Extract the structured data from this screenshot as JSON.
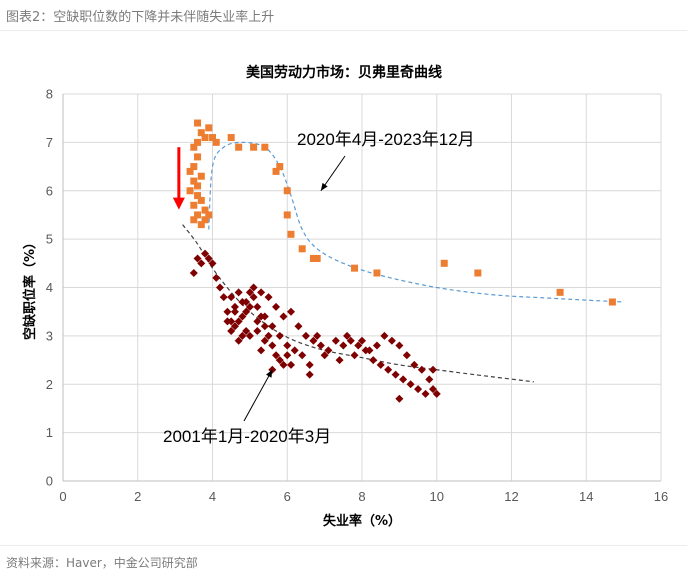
{
  "figure_caption": "图表2：空缺职位数的下降并未伴随失业率上升",
  "source_note": "资料来源：Haver，中金公司研究部",
  "colors": {
    "recent": "#ed7d31",
    "historical": "#7f0000",
    "recent_curve": "#5b9bd5",
    "historical_curve": "#404040",
    "arrow": "#ff0000",
    "grid": "#d9d9d9"
  },
  "chart_data": {
    "type": "scatter",
    "title": "美国劳动力市场：贝弗里奇曲线",
    "xlabel": "失业率（%）",
    "ylabel": "空缺职位率（%）",
    "xlim": [
      0,
      16
    ],
    "ylim": [
      0,
      8
    ],
    "xticks": [
      "0",
      "2",
      "4",
      "6",
      "8",
      "10",
      "12",
      "14",
      "16"
    ],
    "yticks": [
      "0",
      "1",
      "2",
      "3",
      "4",
      "5",
      "6",
      "7",
      "8"
    ],
    "grid": true,
    "annotations": [
      {
        "text": "2020年4月-2023年12月",
        "points_to": [
          6.9,
          6.0
        ]
      },
      {
        "text": "2001年1月-2020年3月",
        "points_to": [
          5.6,
          2.3
        ]
      }
    ],
    "red_arrow": {
      "x": 3.1,
      "y_from": 6.9,
      "y_to": 5.65
    },
    "series": [
      {
        "marker": "square",
        "points": [
          [
            3.5,
            5.4
          ],
          [
            3.6,
            5.5
          ],
          [
            3.7,
            5.3
          ],
          [
            3.8,
            5.4
          ],
          [
            3.5,
            5.7
          ],
          [
            3.6,
            5.9
          ],
          [
            3.7,
            5.8
          ],
          [
            3.8,
            5.6
          ],
          [
            3.9,
            5.5
          ],
          [
            3.6,
            6.1
          ],
          [
            3.7,
            6.3
          ],
          [
            3.5,
            6.2
          ],
          [
            3.4,
            6.0
          ],
          [
            3.5,
            6.5
          ],
          [
            3.6,
            6.7
          ],
          [
            3.4,
            6.4
          ],
          [
            3.5,
            6.9
          ],
          [
            3.6,
            7.0
          ],
          [
            3.7,
            7.2
          ],
          [
            3.6,
            7.4
          ],
          [
            3.8,
            7.1
          ],
          [
            3.9,
            7.3
          ],
          [
            4.0,
            7.1
          ],
          [
            4.1,
            7.0
          ],
          [
            4.5,
            7.1
          ],
          [
            4.7,
            6.9
          ],
          [
            5.1,
            6.9
          ],
          [
            5.4,
            6.9
          ],
          [
            5.7,
            6.4
          ],
          [
            5.8,
            6.5
          ],
          [
            6.0,
            6.0
          ],
          [
            6.0,
            5.5
          ],
          [
            6.1,
            5.1
          ],
          [
            6.4,
            4.8
          ],
          [
            6.7,
            4.6
          ],
          [
            6.8,
            4.6
          ],
          [
            7.8,
            4.4
          ],
          [
            8.4,
            4.3
          ],
          [
            10.2,
            4.5
          ],
          [
            11.1,
            4.3
          ],
          [
            13.3,
            3.9
          ],
          [
            14.7,
            3.7
          ]
        ]
      },
      {
        "marker": "diamond",
        "points": [
          [
            3.5,
            4.3
          ],
          [
            3.6,
            4.6
          ],
          [
            3.7,
            4.5
          ],
          [
            3.8,
            4.7
          ],
          [
            3.9,
            4.6
          ],
          [
            4.0,
            4.5
          ],
          [
            4.1,
            4.2
          ],
          [
            4.2,
            4.0
          ],
          [
            4.3,
            3.8
          ],
          [
            4.4,
            3.5
          ],
          [
            4.5,
            3.3
          ],
          [
            4.6,
            3.2
          ],
          [
            4.7,
            3.3
          ],
          [
            4.8,
            3.0
          ],
          [
            4.9,
            3.5
          ],
          [
            5.0,
            3.9
          ],
          [
            5.1,
            3.8
          ],
          [
            5.2,
            3.6
          ],
          [
            5.3,
            3.4
          ],
          [
            5.4,
            3.2
          ],
          [
            5.5,
            3.0
          ],
          [
            5.6,
            2.8
          ],
          [
            5.7,
            2.6
          ],
          [
            5.8,
            2.5
          ],
          [
            5.9,
            2.4
          ],
          [
            6.0,
            2.6
          ],
          [
            6.1,
            2.4
          ],
          [
            6.2,
            2.7
          ],
          [
            5.4,
            2.9
          ],
          [
            5.2,
            3.1
          ],
          [
            5.3,
            2.7
          ],
          [
            5.0,
            3.0
          ],
          [
            4.8,
            3.4
          ],
          [
            4.6,
            3.6
          ],
          [
            4.5,
            3.8
          ],
          [
            4.7,
            3.9
          ],
          [
            4.9,
            3.7
          ],
          [
            5.1,
            4.0
          ],
          [
            5.3,
            3.9
          ],
          [
            5.5,
            3.8
          ],
          [
            5.7,
            3.6
          ],
          [
            5.9,
            3.4
          ],
          [
            6.1,
            3.5
          ],
          [
            6.3,
            3.2
          ],
          [
            6.5,
            3.0
          ],
          [
            6.7,
            2.9
          ],
          [
            6.9,
            2.8
          ],
          [
            7.1,
            2.7
          ],
          [
            7.3,
            2.9
          ],
          [
            7.5,
            2.8
          ],
          [
            7.7,
            2.9
          ],
          [
            7.9,
            2.8
          ],
          [
            8.1,
            2.7
          ],
          [
            8.3,
            2.5
          ],
          [
            8.5,
            2.4
          ],
          [
            8.7,
            2.3
          ],
          [
            8.9,
            2.2
          ],
          [
            9.1,
            2.1
          ],
          [
            9.3,
            2.0
          ],
          [
            9.5,
            1.9
          ],
          [
            9.7,
            1.8
          ],
          [
            9.9,
            1.9
          ],
          [
            10.0,
            1.8
          ],
          [
            9.8,
            2.1
          ],
          [
            9.6,
            2.3
          ],
          [
            9.4,
            2.4
          ],
          [
            9.2,
            2.6
          ],
          [
            9.0,
            2.8
          ],
          [
            8.8,
            2.9
          ],
          [
            8.6,
            3.0
          ],
          [
            8.4,
            2.8
          ],
          [
            8.2,
            2.7
          ],
          [
            7.8,
            2.6
          ],
          [
            7.4,
            2.5
          ],
          [
            7.0,
            2.6
          ],
          [
            6.6,
            2.4
          ],
          [
            6.4,
            2.6
          ],
          [
            6.0,
            2.8
          ],
          [
            5.8,
            3.0
          ],
          [
            5.6,
            3.2
          ],
          [
            5.4,
            3.4
          ],
          [
            5.2,
            3.3
          ],
          [
            4.9,
            3.1
          ],
          [
            4.7,
            2.9
          ],
          [
            4.5,
            3.1
          ],
          [
            4.4,
            3.3
          ],
          [
            4.6,
            3.5
          ],
          [
            4.8,
            3.7
          ],
          [
            5.0,
            3.6
          ],
          [
            6.8,
            3.0
          ],
          [
            7.6,
            3.0
          ],
          [
            8.0,
            2.9
          ],
          [
            9.0,
            1.7
          ],
          [
            9.9,
            2.3
          ],
          [
            6.6,
            2.2
          ],
          [
            5.6,
            2.3
          ]
        ]
      }
    ],
    "fitted_curves": [
      {
        "points": [
          [
            3.9,
            5.2
          ],
          [
            4.0,
            6.5
          ],
          [
            4.3,
            6.9
          ],
          [
            4.8,
            7.0
          ],
          [
            5.4,
            6.9
          ],
          [
            5.8,
            6.5
          ],
          [
            6.1,
            5.9
          ],
          [
            6.4,
            5.2
          ],
          [
            6.8,
            4.8
          ],
          [
            7.5,
            4.5
          ],
          [
            8.5,
            4.25
          ],
          [
            10.0,
            4.0
          ],
          [
            11.5,
            3.85
          ],
          [
            13.0,
            3.78
          ],
          [
            15.0,
            3.7
          ]
        ]
      },
      {
        "points": [
          [
            3.2,
            5.3
          ],
          [
            3.6,
            4.9
          ],
          [
            4.0,
            4.4
          ],
          [
            4.5,
            3.9
          ],
          [
            5.0,
            3.5
          ],
          [
            5.6,
            3.15
          ],
          [
            6.2,
            2.9
          ],
          [
            7.0,
            2.7
          ],
          [
            8.0,
            2.55
          ],
          [
            9.0,
            2.4
          ],
          [
            10.0,
            2.3
          ],
          [
            11.0,
            2.2
          ],
          [
            12.6,
            2.05
          ]
        ]
      }
    ]
  }
}
